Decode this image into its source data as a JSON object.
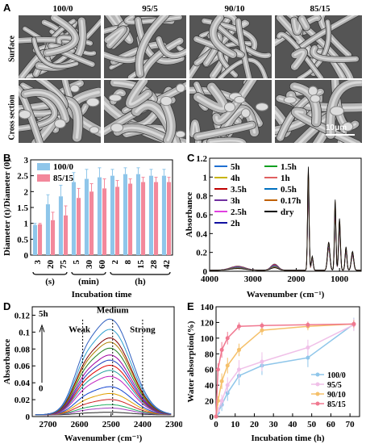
{
  "panels": {
    "a": {
      "letter": "A",
      "columns": [
        "100/0",
        "95/5",
        "90/10",
        "85/15"
      ],
      "rows": [
        "Surface",
        "Cross section"
      ],
      "scale_bar": "10μm"
    },
    "b": {
      "letter": "B"
    },
    "c": {
      "letter": "C"
    },
    "d": {
      "letter": "D"
    },
    "e": {
      "letter": "E"
    }
  },
  "chart_data": [
    {
      "id": "B",
      "type": "bar",
      "ylabel": "Diameter (t)/Diameter (0)",
      "xlabel": "Incubation time",
      "ylim": [
        0,
        3
      ],
      "yticks": [
        "0",
        "0.5",
        "1",
        "1.5",
        "2",
        "2.5",
        "3"
      ],
      "categories": [
        "3",
        "20",
        "75",
        "5",
        "30",
        "60",
        "2",
        "8",
        "15",
        "28",
        "42"
      ],
      "groups": [
        {
          "label": "(s)",
          "from": 0,
          "to": 2
        },
        {
          "label": "(min)",
          "from": 3,
          "to": 5
        },
        {
          "label": "(h)",
          "from": 6,
          "to": 10
        }
      ],
      "legend_position": "top-left",
      "series": [
        {
          "name": "100/0",
          "color": "#8fc6ea",
          "values": [
            0.95,
            1.6,
            1.85,
            2.3,
            2.4,
            2.45,
            2.5,
            2.55,
            2.55,
            2.5,
            2.5
          ],
          "errors": [
            0.05,
            0.3,
            0.35,
            0.3,
            0.3,
            0.3,
            0.2,
            0.2,
            0.2,
            0.2,
            0.2
          ]
        },
        {
          "name": "85/15",
          "color": "#f3889b",
          "values": [
            0.97,
            1.1,
            1.25,
            1.8,
            2.0,
            2.1,
            2.15,
            2.25,
            2.3,
            2.3,
            2.3
          ],
          "errors": [
            0.03,
            0.25,
            0.3,
            0.3,
            0.25,
            0.3,
            0.2,
            0.15,
            0.15,
            0.15,
            0.15
          ]
        }
      ]
    },
    {
      "id": "C",
      "type": "line",
      "ylabel": "Absorbance",
      "xlabel": "Wavenumber (cm⁻¹)",
      "xlim": [
        4000,
        500
      ],
      "ylim": [
        0,
        1.2
      ],
      "xticks": [
        "4000",
        "3000",
        "2000",
        "1000"
      ],
      "yticks": [
        "0",
        "0.2",
        "0.4",
        "0.6",
        "0.8",
        "1",
        "1.2"
      ],
      "legend_position": "top-left",
      "series": [
        {
          "name": "5h",
          "color": "#1f6fd1"
        },
        {
          "name": "4h",
          "color": "#c8b400"
        },
        {
          "name": "3.5h",
          "color": "#c00000"
        },
        {
          "name": "3h",
          "color": "#7030a0"
        },
        {
          "name": "2.5h",
          "color": "#e040e0"
        },
        {
          "name": "2h",
          "color": "#1010a0"
        },
        {
          "name": "1.5h",
          "color": "#10a020"
        },
        {
          "name": "1h",
          "color": "#e06060"
        },
        {
          "name": "0.5h",
          "color": "#0070c0"
        },
        {
          "name": "0.17h",
          "color": "#c06000"
        },
        {
          "name": "dry",
          "color": "#000000"
        }
      ]
    },
    {
      "id": "D",
      "type": "line",
      "ylabel": "Absorbance",
      "xlabel": "Wavenumber (cm⁻¹)",
      "xlim": [
        2750,
        2300
      ],
      "ylim": [
        0,
        0.13
      ],
      "xticks": [
        "2700",
        "2600",
        "2500",
        "2400",
        "2300"
      ],
      "yticks": [
        "0",
        "0.02",
        "0.04",
        "0.06",
        "0.08",
        "0.1",
        "0.12"
      ],
      "annotations": [
        "Weak",
        "Medium",
        "Strong",
        "5h",
        "0"
      ],
      "peaks": [
        0.003,
        0.008,
        0.012,
        0.018,
        0.025,
        0.033,
        0.045,
        0.052,
        0.058,
        0.064,
        0.07,
        0.078,
        0.085,
        0.09,
        0.1,
        0.112
      ],
      "colors": [
        "#222222",
        "#a040c0",
        "#20b060",
        "#d02020",
        "#e0a000",
        "#1040d0",
        "#c020c0",
        "#20a0a0",
        "#e00000",
        "#2040c0",
        "#a000a0",
        "#208020",
        "#b08000",
        "#800000",
        "#30a0d0",
        "#3060c0"
      ]
    },
    {
      "id": "E",
      "type": "line",
      "ylabel": "Water absorption(%)",
      "xlabel": "Incubation time (h)",
      "xlim": [
        0,
        75
      ],
      "ylim": [
        0,
        140
      ],
      "xticks": [
        "0",
        "10",
        "20",
        "30",
        "40",
        "50",
        "60",
        "70"
      ],
      "yticks": [
        "0",
        "20",
        "40",
        "60",
        "80",
        "100",
        "120",
        "140"
      ],
      "legend_position": "bottom-right",
      "series": [
        {
          "name": "100/0",
          "color": "#8fc6ea",
          "x": [
            0,
            1,
            3,
            6,
            12,
            24,
            48,
            72
          ],
          "y": [
            0,
            5,
            15,
            30,
            52,
            65,
            75,
            118
          ],
          "err": [
            2,
            4,
            8,
            10,
            12,
            12,
            12,
            8
          ]
        },
        {
          "name": "95/5",
          "color": "#f0c0e8",
          "x": [
            0,
            1,
            3,
            6,
            12,
            24,
            48,
            72
          ],
          "y": [
            0,
            8,
            20,
            40,
            60,
            70,
            88,
            117
          ],
          "err": [
            2,
            4,
            8,
            10,
            12,
            12,
            10,
            8
          ]
        },
        {
          "name": "90/10",
          "color": "#f5c06a",
          "x": [
            0,
            1,
            3,
            6,
            12,
            24,
            48,
            72
          ],
          "y": [
            0,
            20,
            45,
            65,
            85,
            110,
            115,
            118
          ],
          "err": [
            3,
            6,
            10,
            10,
            8,
            6,
            5,
            5
          ]
        },
        {
          "name": "85/15",
          "color": "#f07890",
          "x": [
            0,
            1,
            3,
            6,
            12,
            24,
            48,
            72
          ],
          "y": [
            0,
            60,
            85,
            100,
            115,
            116,
            117,
            118
          ],
          "err": [
            3,
            8,
            10,
            8,
            5,
            4,
            4,
            4
          ]
        }
      ]
    }
  ]
}
